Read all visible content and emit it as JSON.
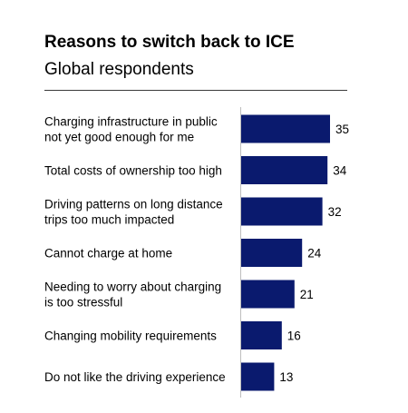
{
  "chart_data": {
    "type": "bar",
    "orientation": "horizontal",
    "title": "Reasons to switch back to ICE",
    "subtitle": "Global respondents",
    "categories": [
      [
        "Charging infrastructure in public",
        "not yet good enough for me"
      ],
      [
        "Total costs of ownership too high"
      ],
      [
        "Driving patterns on long distance",
        "trips too much impacted"
      ],
      [
        "Cannot charge at home"
      ],
      [
        "Needing to worry about charging",
        "is too stressful"
      ],
      [
        "Changing mobility requirements"
      ],
      [
        "Do not like the driving experience"
      ]
    ],
    "values": [
      35,
      34,
      32,
      24,
      21,
      16,
      13
    ],
    "xlim": [
      0,
      35
    ],
    "bar_color": "#0a1a6e",
    "grid": false,
    "legend": "none"
  }
}
